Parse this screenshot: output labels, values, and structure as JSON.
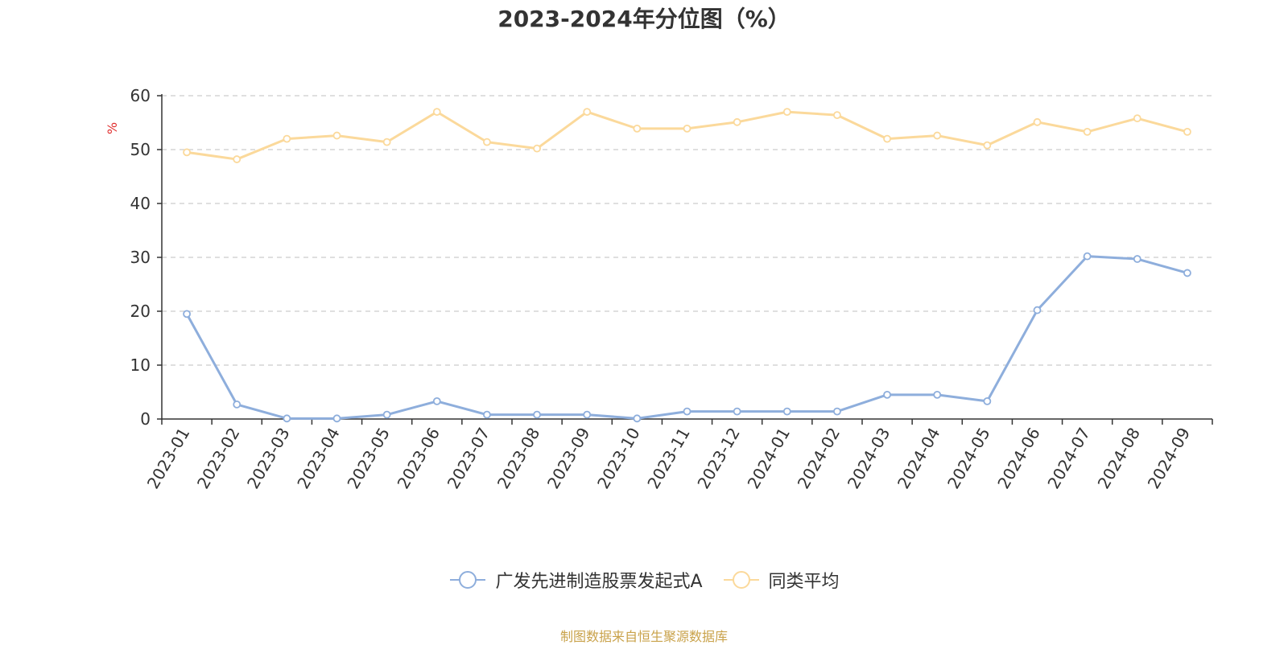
{
  "chart_data": {
    "type": "line",
    "title": "2023-2024年分位图（%）",
    "ylabel": "%",
    "ylim": [
      0,
      60
    ],
    "yticks": [
      0,
      10,
      20,
      30,
      40,
      50,
      60
    ],
    "grid": true,
    "legend_position": "bottom-center",
    "x": [
      "2023-01",
      "2023-02",
      "2023-03",
      "2023-04",
      "2023-05",
      "2023-06",
      "2023-07",
      "2023-08",
      "2023-09",
      "2023-10",
      "2023-11",
      "2023-12",
      "2024-01",
      "2024-02",
      "2024-03",
      "2024-04",
      "2024-05",
      "2024-06",
      "2024-07",
      "2024-08",
      "2024-09"
    ],
    "series": [
      {
        "name": "广发先进制造股票发起式A",
        "color": "#8eaedc",
        "values": [
          19.5,
          2.7,
          0.1,
          0.1,
          0.8,
          3.3,
          0.8,
          0.8,
          0.8,
          0.1,
          1.4,
          1.4,
          1.4,
          1.4,
          4.5,
          4.5,
          3.3,
          20.2,
          30.2,
          29.7,
          27.1
        ]
      },
      {
        "name": "同类平均",
        "color": "#fbd99b",
        "values": [
          49.5,
          48.2,
          52.0,
          52.6,
          51.4,
          57.0,
          51.4,
          50.2,
          57.0,
          53.9,
          53.9,
          55.1,
          57.0,
          56.4,
          52.0,
          52.6,
          50.8,
          55.1,
          53.3,
          55.8,
          53.3
        ]
      }
    ]
  },
  "footer": {
    "source": "制图数据来自恒生聚源数据库"
  }
}
